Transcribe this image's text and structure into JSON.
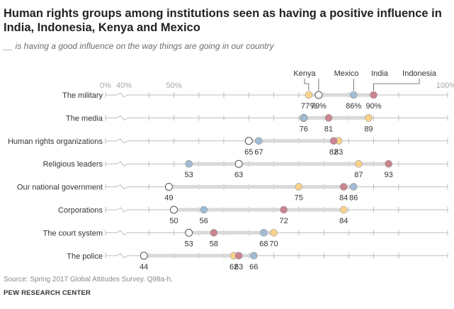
{
  "title": "Human rights groups among institutions seen as having a positive influence in India, Indonesia, Kenya and Mexico",
  "subtitle": "__ is having a good influence on the way things are going in our country",
  "source": "Source: Spring 2017 Global Attitudes Survey. Q98a-h.",
  "organization": "PEW RESEARCH CENTER",
  "colors": {
    "Kenya": "#f9d28c",
    "Mexico": "#ffffff",
    "India": "#9fbcd4",
    "Indonesia": "#c9848f",
    "bar": "#d9d9d9",
    "axis": "#bdbdbd",
    "tick_label": "#a6a6a6",
    "text": "#333333"
  },
  "chart_data": {
    "type": "dot",
    "title": "Human rights groups among institutions seen as having a positive influence in India, Indonesia, Kenya and Mexico",
    "subtitle": "__ is having a good influence on the way things are going in our country",
    "x_ticks": [
      "0%",
      "40%",
      "50%",
      "100%"
    ],
    "x_tick_values": [
      0,
      40,
      50,
      100
    ],
    "axis_break": true,
    "legend": [
      "Kenya",
      "Mexico",
      "India",
      "Indonesia"
    ],
    "legend_placement": "top-right (labels over the first row)",
    "categories": [
      "The military",
      "The media",
      "Human rights organizations",
      "Religious leaders",
      "Our national government",
      "Corporations",
      "The court system",
      "The police"
    ],
    "series": [
      {
        "name": "Kenya",
        "values": [
          77,
          89,
          83,
          87,
          75,
          84,
          70,
          62
        ]
      },
      {
        "name": "Mexico",
        "values": [
          79,
          76,
          65,
          63,
          49,
          50,
          53,
          44
        ]
      },
      {
        "name": "India",
        "values": [
          86,
          76,
          67,
          53,
          86,
          56,
          68,
          66
        ]
      },
      {
        "name": "Indonesia",
        "values": [
          90,
          81,
          82,
          93,
          84,
          72,
          58,
          63
        ]
      }
    ],
    "value_labels": [
      [
        "77%",
        "79%",
        "86%",
        "90%"
      ],
      [
        "76",
        "81",
        "89"
      ],
      [
        "65",
        "67",
        "82",
        "83"
      ],
      [
        "53",
        "63",
        "87",
        "93"
      ],
      [
        "49",
        "75",
        "84",
        "86"
      ],
      [
        "50",
        "56",
        "72",
        "84"
      ],
      [
        "53",
        "58",
        "68",
        "70"
      ],
      [
        "44",
        "62",
        "63",
        "66"
      ]
    ]
  }
}
